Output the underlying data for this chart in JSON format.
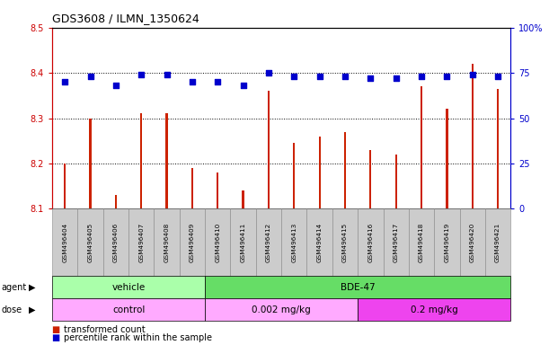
{
  "title": "GDS3608 / ILMN_1350624",
  "samples": [
    "GSM496404",
    "GSM496405",
    "GSM496406",
    "GSM496407",
    "GSM496408",
    "GSM496409",
    "GSM496410",
    "GSM496411",
    "GSM496412",
    "GSM496413",
    "GSM496414",
    "GSM496415",
    "GSM496416",
    "GSM496417",
    "GSM496418",
    "GSM496419",
    "GSM496420",
    "GSM496421"
  ],
  "transformed_counts": [
    8.2,
    8.3,
    8.13,
    8.31,
    8.31,
    8.19,
    8.18,
    8.14,
    8.36,
    8.245,
    8.26,
    8.27,
    8.23,
    8.22,
    8.37,
    8.32,
    8.42,
    8.365
  ],
  "percentile_ranks": [
    70,
    73,
    68,
    74,
    74,
    70,
    70,
    68,
    75,
    73,
    73,
    73,
    72,
    72,
    73,
    73,
    74,
    73
  ],
  "ylim_left": [
    8.1,
    8.5
  ],
  "ylim_right": [
    0,
    100
  ],
  "yticks_left": [
    8.1,
    8.2,
    8.3,
    8.4,
    8.5
  ],
  "yticks_right": [
    0,
    25,
    50,
    75,
    100
  ],
  "bar_color": "#cc2200",
  "dot_color": "#0000cc",
  "agent_groups": [
    {
      "label": "vehicle",
      "start": 0,
      "end": 5,
      "color": "#aaffaa"
    },
    {
      "label": "BDE-47",
      "start": 6,
      "end": 17,
      "color": "#66dd66"
    }
  ],
  "dose_groups": [
    {
      "label": "control",
      "start": 0,
      "end": 5,
      "color": "#ffaaff"
    },
    {
      "label": "0.002 mg/kg",
      "start": 6,
      "end": 11,
      "color": "#ffaaff"
    },
    {
      "label": "0.2 mg/kg",
      "start": 12,
      "end": 17,
      "color": "#ee44ee"
    }
  ],
  "xtick_bg_color": "#cccccc",
  "xtick_border_color": "#888888",
  "plot_bg_color": "#ffffff",
  "grid_color": "#000000",
  "left_color": "#cc0000",
  "right_color": "#0000cc"
}
